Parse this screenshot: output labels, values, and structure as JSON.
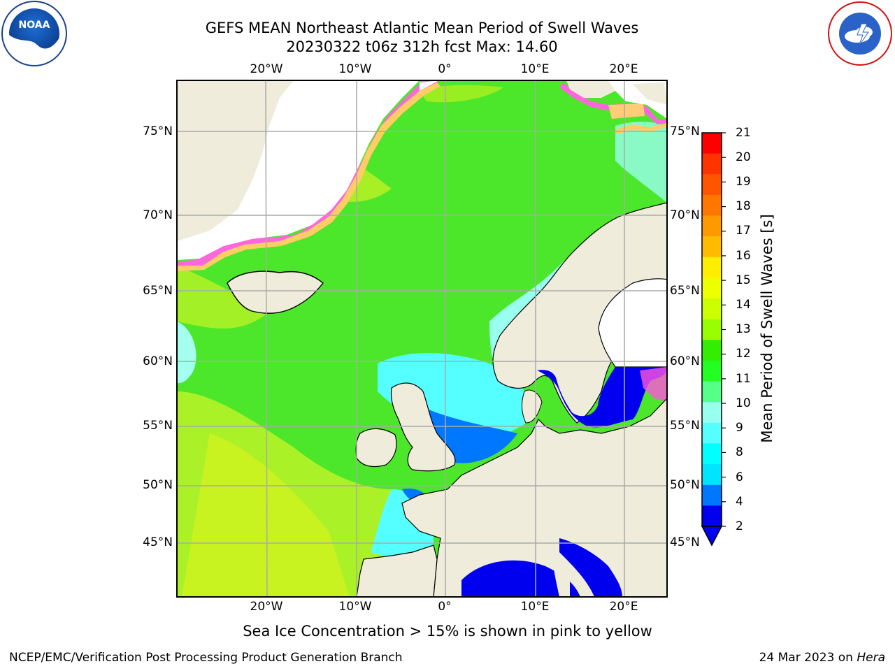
{
  "title_line1": "GEFS MEAN Northeast Atlantic Mean Period of Swell Waves",
  "title_line2": "20230322 t06z 312h fcst   Max: 14.60",
  "lon_labels": [
    "20°W",
    "10°W",
    "0°",
    "10°E",
    "20°E"
  ],
  "lat_labels": [
    "75°N",
    "70°N",
    "65°N",
    "60°N",
    "55°N",
    "50°N",
    "45°N"
  ],
  "colorbar": {
    "label": "Mean Period of Swell Waves [s]",
    "ticks": [
      "21",
      "20",
      "19",
      "18",
      "17",
      "16",
      "15",
      "14",
      "13",
      "12",
      "11",
      "10",
      "9",
      "8",
      "6",
      "4",
      "2"
    ],
    "colors": [
      "#ff0000",
      "#ff3300",
      "#ff5500",
      "#ff7700",
      "#ff9900",
      "#ffbb00",
      "#ffee00",
      "#eeff00",
      "#ccff00",
      "#99ff00",
      "#33ee00",
      "#22ff22",
      "#55ff88",
      "#99ffee",
      "#55ffff",
      "#00ffff",
      "#00e5ff",
      "#0077ff",
      "#0000ee"
    ]
  },
  "footnote": "Sea Ice Concentration > 15% is shown in pink to yellow",
  "credit": "NCEP/EMC/Verification Post Processing Product Generation Branch",
  "date_text": "24 Mar 2023 on ",
  "date_host": "Hera",
  "logos": {
    "noaa": "NOAA",
    "nws": "NATIONAL WEATHER SERVICE"
  },
  "colors": {
    "land": "#efecdc",
    "ocean_green": "#55ee22",
    "ice_pink": "#ff55dd",
    "baltic_blue": "#0000ee"
  }
}
